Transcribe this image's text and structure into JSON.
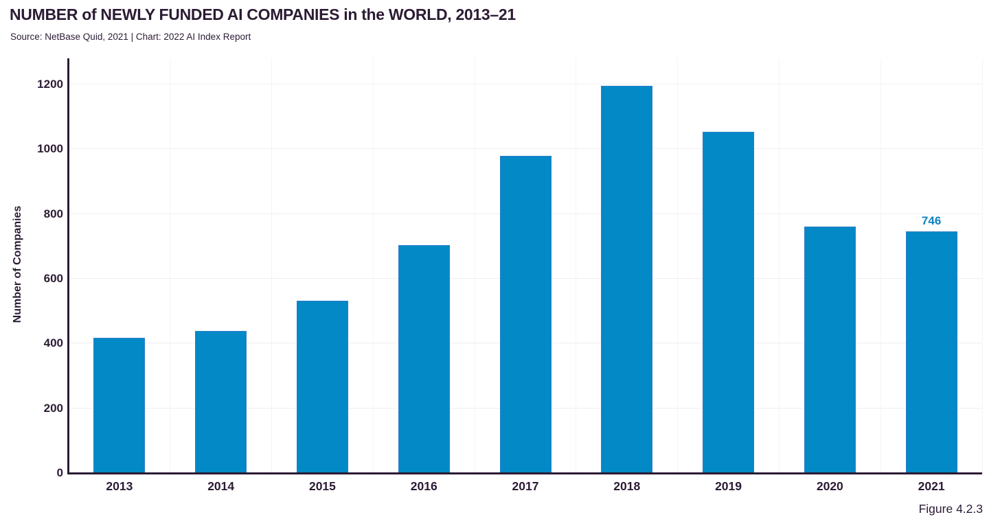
{
  "header": {
    "title": "NUMBER of NEWLY FUNDED AI COMPANIES in the WORLD, 2013–21",
    "subtitle": "Source: NetBase Quid, 2021 | Chart: 2022 AI Index Report"
  },
  "footer": {
    "figure_label": "Figure 4.2.3"
  },
  "colors": {
    "bar_fill": "#0289c6",
    "bar_edge": "#2e7cc9",
    "annotation_text": "#0f82c0",
    "text_dark": "#2b1b33",
    "axis_line": "#2b1b33",
    "grid_horizontal": "#efeff2",
    "grid_vertical": "#f5f5f7",
    "background": "#ffffff"
  },
  "chart_data": {
    "type": "bar",
    "title": "NUMBER of NEWLY FUNDED AI COMPANIES in the WORLD, 2013–21",
    "subtitle": "Source: NetBase Quid, 2021 | Chart: 2022 AI Index Report",
    "categories": [
      "2013",
      "2014",
      "2015",
      "2016",
      "2017",
      "2018",
      "2019",
      "2020",
      "2021"
    ],
    "values": [
      418,
      438,
      532,
      704,
      980,
      1196,
      1054,
      762,
      746
    ],
    "xlabel": "",
    "ylabel": "Number of Companies",
    "ylim": [
      0,
      1200
    ],
    "yticks": [
      0,
      200,
      400,
      600,
      800,
      1000,
      1200
    ],
    "grid": true,
    "legend_position": "none",
    "annotations": [
      {
        "category": "2021",
        "text": "746"
      }
    ]
  }
}
